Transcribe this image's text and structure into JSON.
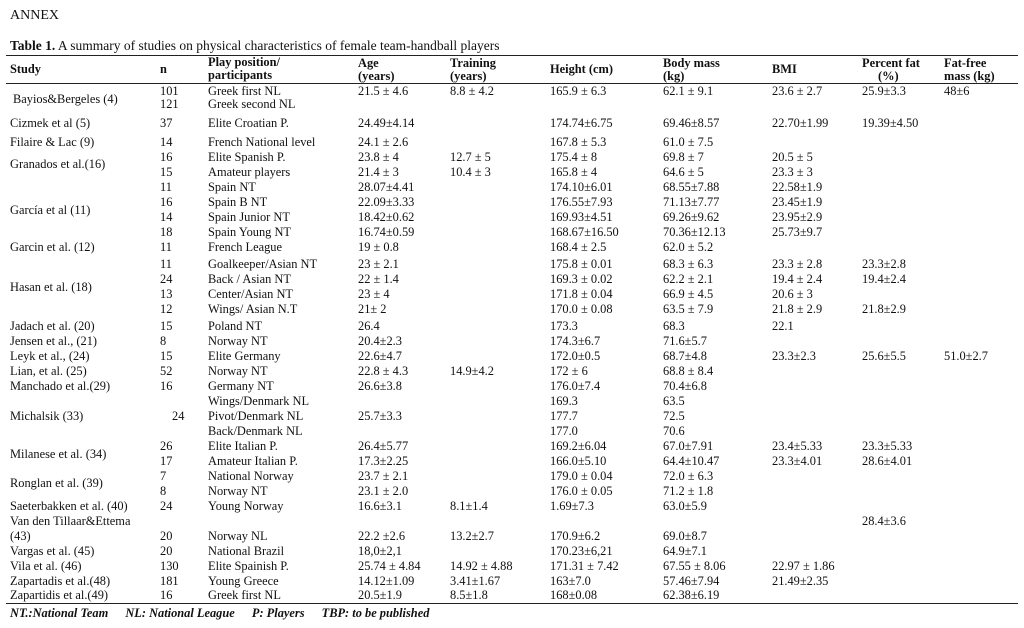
{
  "annex": "ANNEX",
  "caption": {
    "label": "Table 1.",
    "text": " A summary of studies on physical characteristics of female team-handball players"
  },
  "columns": {
    "study": "Study",
    "n": "n",
    "position_1": "Play position/",
    "position_2": "participants",
    "age_1": "Age",
    "age_2": "(years)",
    "training_1": "Training",
    "training_2": "(years)",
    "height": "Height (cm)",
    "mass_1": "Body mass",
    "mass_2": "(kg)",
    "bmi": "BMI",
    "fat_1": "Percent fat",
    "fat_2": "(%)",
    "ffm_1": "Fat-free",
    "ffm_2": "mass (kg)"
  },
  "rows": [
    {
      "study": "Bayios&Bergeles (4)",
      "n": "101",
      "pos": "Greek first NL",
      "age": "21.5 ± 4.6",
      "train": "8.8 ± 4.2",
      "height": "165.9 ± 6.3",
      "mass": "62.1 ± 9.1",
      "bmi": "23.6 ± 2.7",
      "fat": "25.9±3.3",
      "ffm": "48±6"
    },
    {
      "study": "",
      "n": "121",
      "pos": "Greek second NL",
      "age": "",
      "train": "",
      "height": "",
      "mass": "",
      "bmi": "",
      "fat": "",
      "ffm": ""
    },
    {
      "study": "Cizmek et al (5)",
      "n": "37",
      "pos": "Elite Croatian P.",
      "age": "24.49±4.14",
      "train": "",
      "height": "174.74±6.75",
      "mass": "69.46±8.57",
      "bmi": "22.70±1.99",
      "fat": "19.39±4.50",
      "ffm": ""
    },
    {
      "study": "Filaire & Lac (9)",
      "n": "14",
      "pos": "French National level",
      "age": "24.1 ± 2.6",
      "train": "",
      "height": "167.8 ± 5.3",
      "mass": "61.0 ± 7.5",
      "bmi": "",
      "fat": "",
      "ffm": ""
    },
    {
      "study": "Granados et al.(16)",
      "n": "16",
      "pos": "Elite Spanish P.",
      "age": "23.8 ± 4",
      "train": "12.7 ± 5",
      "height": "175.4 ± 8",
      "mass": "69.8 ± 7",
      "bmi": "20.5 ± 5",
      "fat": "",
      "ffm": ""
    },
    {
      "study": "",
      "n": "15",
      "pos": "Amateur players",
      "age": "21.4 ± 3",
      "train": "10.4 ± 3",
      "height": "165.8 ± 4",
      "mass": "64.6 ± 5",
      "bmi": "23.3 ± 3",
      "fat": "",
      "ffm": ""
    },
    {
      "study": "",
      "n": "11",
      "pos": "Spain NT",
      "age": "28.07±4.41",
      "train": "",
      "height": "174.10±6.01",
      "mass": "68.55±7.88",
      "bmi": "22.58±1.9",
      "fat": "",
      "ffm": ""
    },
    {
      "study": "García et al (11)",
      "n": "16",
      "pos": "Spain B NT",
      "age": "22.09±3.33",
      "train": "",
      "height": "176.55±7.93",
      "mass": "71.13±7.77",
      "bmi": "23.45±1.9",
      "fat": "",
      "ffm": ""
    },
    {
      "study": "",
      "n": "14",
      "pos": "Spain Junior NT",
      "age": "18.42±0.62",
      "train": "",
      "height": "169.93±4.51",
      "mass": "69.26±9.62",
      "bmi": "23.95±2.9",
      "fat": "",
      "ffm": ""
    },
    {
      "study": "",
      "n": "18",
      "pos": "Spain Young NT",
      "age": "16.74±0.59",
      "train": "",
      "height": "168.67±16.50",
      "mass": "70.36±12.13",
      "bmi": "25.73±9.7",
      "fat": "",
      "ffm": ""
    },
    {
      "study": "Garcin et al. (12)",
      "n": "11",
      "pos": "French League",
      "age": "19 ± 0.8",
      "train": "",
      "height": "168.4 ± 2.5",
      "mass": "62.0 ± 5.2",
      "bmi": "",
      "fat": "",
      "ffm": ""
    },
    {
      "study": "",
      "n": "11",
      "pos": "Goalkeeper/Asian NT",
      "age": "23 ± 2.1",
      "train": "",
      "height": "175.8 ± 0.01",
      "mass": "68.3  ± 6.3",
      "bmi": "23.3 ± 2.8",
      "fat": "23.3±2.8",
      "ffm": ""
    },
    {
      "study": "Hasan  et al. (18)",
      "n": "24",
      "pos": "Back / Asian NT",
      "age": "22 ± 1.4",
      "train": "",
      "height": "169.3 ± 0.02",
      "mass": "62.2 ± 2.1",
      "bmi": "19.4 ± 2.4",
      "fat": "19.4±2.4",
      "ffm": ""
    },
    {
      "study": "",
      "n": "13",
      "pos": "Center/Asian NT",
      "age": "23 ± 4",
      "train": "",
      "height": "171.8 ± 0.04",
      "mass": "66.9 ± 4.5",
      "bmi": "20.6 ± 3",
      "fat": "",
      "ffm": ""
    },
    {
      "study": "",
      "n": "12",
      "pos": "Wings/ Asian N.T",
      "age": "21± 2",
      "train": "",
      "height": "170.0 ± 0.08",
      "mass": "63.5 ± 7.9",
      "bmi": "21.8 ± 2.9",
      "fat": "21.8±2.9",
      "ffm": ""
    },
    {
      "study": "Jadach et al. (20)",
      "n": "15",
      "pos": "Poland NT",
      "age": "26.4",
      "train": "",
      "height": "173.3",
      "mass": "68.3",
      "bmi": "22.1",
      "fat": "",
      "ffm": ""
    },
    {
      "study": "Jensen et al., (21)",
      "n": "8",
      "pos": "Norway NT",
      "age": "20.4±2.3",
      "train": "",
      "height": "174.3±6.7",
      "mass": "71.6±5.7",
      "bmi": "",
      "fat": "",
      "ffm": ""
    },
    {
      "study": "Leyk et al., (24)",
      "n": "15",
      "pos": "Elite Germany",
      "age": "22.6±4.7",
      "train": "",
      "height": "172.0±0.5",
      "mass": "68.7±4.8",
      "bmi": "23.3±2.3",
      "fat": "25.6±5.5",
      "ffm": "51.0±2.7"
    },
    {
      "study": "Lian, et al. (25)",
      "n": "52",
      "pos": "Norway NT",
      "age": "22.8 ±  4.3",
      "train": "14.9±4.2",
      "height": "172 ± 6",
      "mass": "68.8 ± 8.4",
      "bmi": "",
      "fat": "",
      "ffm": ""
    },
    {
      "study": "Manchado et al.(29)",
      "n": "16",
      "pos": "Germany NT",
      "age": "26.6±3.8",
      "train": "",
      "height": "176.0±7.4",
      "mass": "70.4±6.8",
      "bmi": "",
      "fat": "",
      "ffm": ""
    },
    {
      "study": "",
      "n": "",
      "pos": "Wings/Denmark NL",
      "age": "",
      "train": "",
      "height": "169.3",
      "mass": "63.5",
      "bmi": "",
      "fat": "",
      "ffm": ""
    },
    {
      "study": "Michalsik (33)",
      "n": "24",
      "pos": "Pivot/Denmark NL",
      "age": "25.7±3.3",
      "train": "",
      "height": "177.7",
      "mass": "72.5",
      "bmi": "",
      "fat": "",
      "ffm": ""
    },
    {
      "study": "",
      "n": "",
      "pos": "Back/Denmark NL",
      "age": "",
      "train": "",
      "height": "177.0",
      "mass": "70.6",
      "bmi": "",
      "fat": "",
      "ffm": ""
    },
    {
      "study": "",
      "n": "26",
      "pos": "Elite Italian P.",
      "age": "26.4±5.77",
      "train": "",
      "height": "169.2±6.04",
      "mass": "67.0±7.91",
      "bmi": "23.4±5.33",
      "fat": "23.3±5.33",
      "ffm": ""
    },
    {
      "study": "Milanese et al. (34)",
      "n": "17",
      "pos": "Amateur Italian P.",
      "age": "17.3±2.25",
      "train": "",
      "height": "166.0±5.10",
      "mass": "64.4±10.47",
      "bmi": "23.3±4.01",
      "fat": "28.6±4.01",
      "ffm": ""
    },
    {
      "study": "Ronglan et al. (39)",
      "n": "7",
      "pos": "National Norway",
      "age": "23.7 ± 2.1",
      "train": "",
      "height": "179.0 ± 0.04",
      "mass": "72.0 ± 6.3",
      "bmi": "",
      "fat": "",
      "ffm": ""
    },
    {
      "study": "",
      "n": "8",
      "pos": "Norway NT",
      "age": "23.1 ± 2.0",
      "train": "",
      "height": "176.0 ± 0.05",
      "mass": "71.2 ± 1.8",
      "bmi": "",
      "fat": "",
      "ffm": ""
    },
    {
      "study": "Saeterbakken et al. (40)",
      "n": "24",
      "pos": "Young Norway",
      "age": "16.6±3.1",
      "train": "8.1±1.4",
      "height": "1.69±7.3",
      "mass": "63.0±5.9",
      "bmi": "",
      "fat": "",
      "ffm": ""
    },
    {
      "study": "Van den Tillaar&Ettema",
      "n": "",
      "pos": "",
      "age": "",
      "train": "",
      "height": "",
      "mass": "",
      "bmi": "",
      "fat": "28.4±3.6",
      "ffm": ""
    },
    {
      "study": "(43)",
      "n": "20",
      "pos": "Norway NL",
      "age": "22.2 ±2.6",
      "train": "13.2±2.7",
      "height": "170.9±6.2",
      "mass": "69.0±8.7",
      "bmi": "",
      "fat": "",
      "ffm": ""
    },
    {
      "study": "Vargas et al. (45)",
      "n": "20",
      "pos": "National Brazil",
      "age": "18,0±2,1",
      "train": "",
      "height": "170.23±6,21",
      "mass": "64.9±7.1",
      "bmi": "",
      "fat": "",
      "ffm": ""
    },
    {
      "study": "Vila et al. (46)",
      "n": "130",
      "pos": "Elite Spainish P.",
      "age": "25.74 ±  4.84",
      "train": "14.92 ± 4.88",
      "height": "171.31 ± 7.42",
      "mass": "67.55 ± 8.06",
      "bmi": "22.97 ± 1.86",
      "fat": "",
      "ffm": ""
    },
    {
      "study": "Zapartadis et al.(48)",
      "n": "181",
      "pos": "Young Greece",
      "age": "14.12±1.09",
      "train": "3.41±1.67",
      "height": "163±7.0",
      "mass": "57.46±7.94",
      "bmi": "21.49±2.35",
      "fat": "",
      "ffm": ""
    },
    {
      "study": "Zapartidis et al.(49)",
      "n": "16",
      "pos": "Greek first NL",
      "age": "20.5±1.9",
      "train": "8.5±1.8",
      "height": "168±0.08",
      "mass": "62.38±6.19",
      "bmi": "",
      "fat": "",
      "ffm": ""
    }
  ],
  "footnote": {
    "nt": "NT.:National Team",
    "nl": "NL: National League",
    "p": "P: Players",
    "tbp": "TBP: to be published"
  }
}
